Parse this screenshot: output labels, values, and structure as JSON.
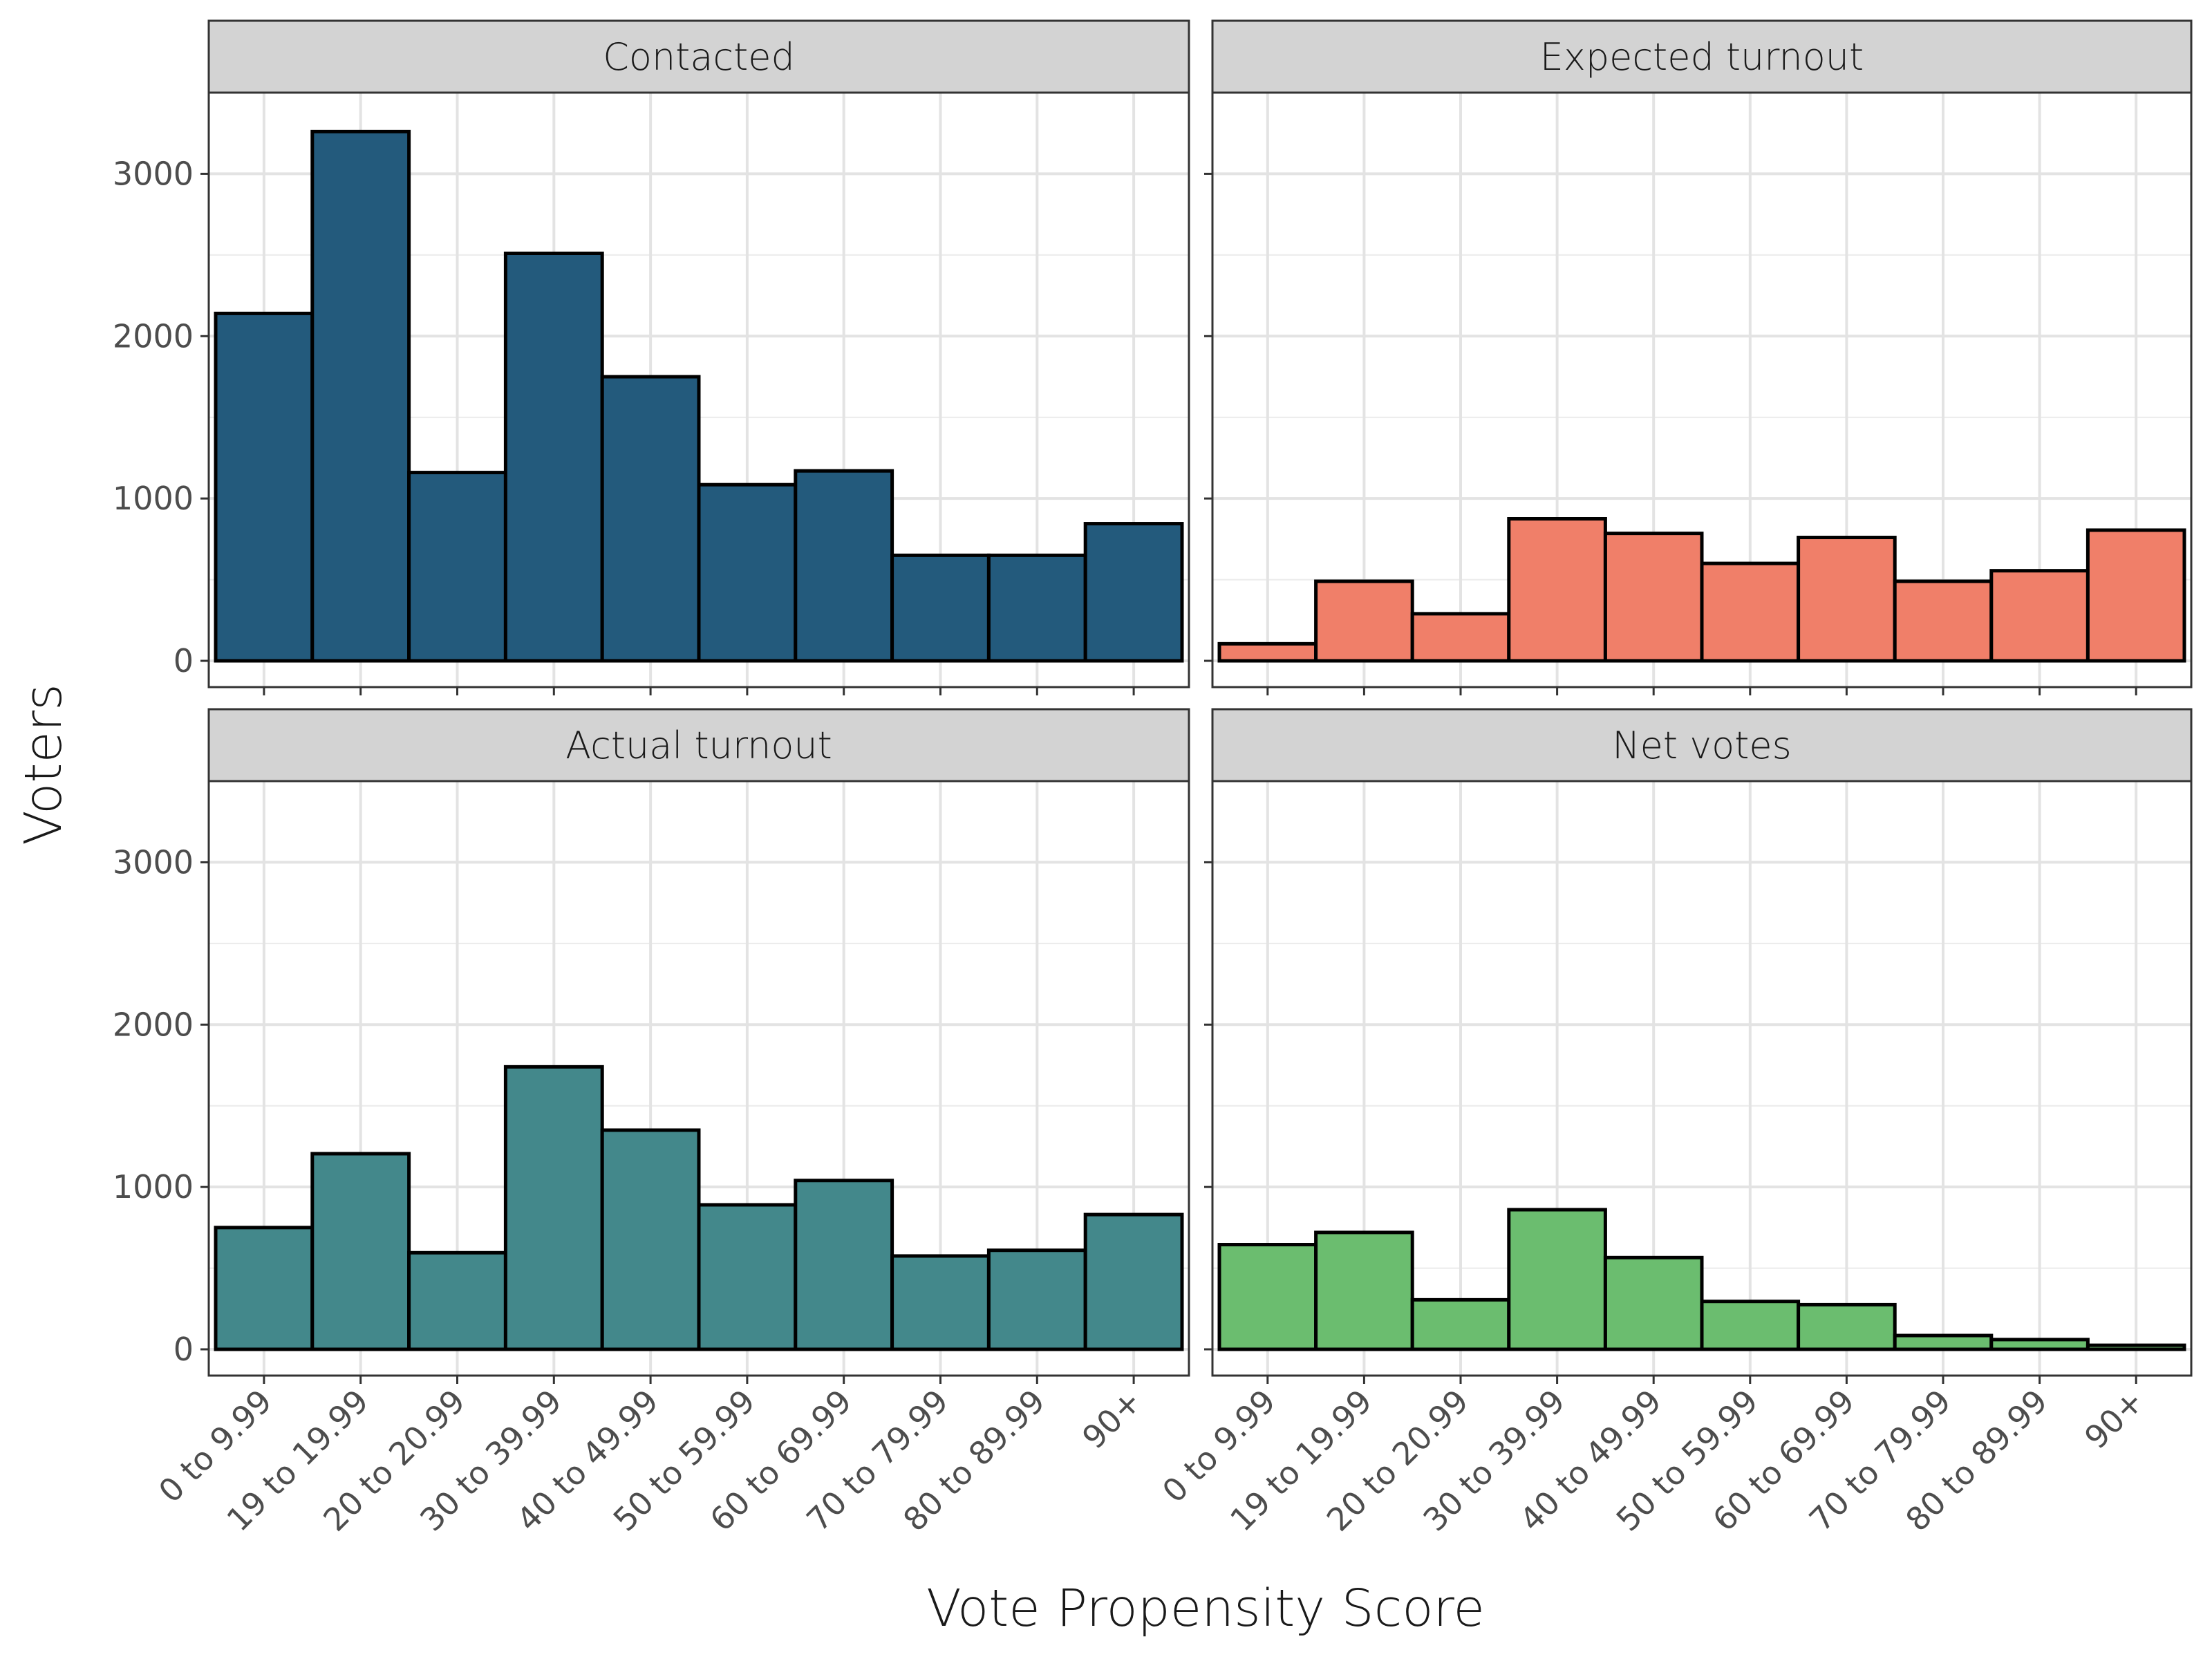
{
  "chart_data": {
    "type": "bar",
    "layout": "facet-grid-2x2",
    "xlabel": "Vote Propensity Score",
    "ylabel": "Voters",
    "ylim": [
      0,
      3500
    ],
    "yticks": [
      0,
      1000,
      2000,
      3000
    ],
    "grid": true,
    "categories": [
      "0 to 9.99",
      "19 to 19.99",
      "20 to 20.99",
      "30 to 39.99",
      "40 to 49.99",
      "50 to 59.99",
      "60 to 69.99",
      "70 to 79.99",
      "80 to 89.99",
      "90+"
    ],
    "panels": [
      {
        "title": "Contacted",
        "color": "#235a7c",
        "values": [
          2140,
          3260,
          1160,
          2510,
          1750,
          1085,
          1170,
          650,
          650,
          845
        ]
      },
      {
        "title": "Expected turnout",
        "color": "#f07f69",
        "values": [
          105,
          490,
          290,
          875,
          785,
          600,
          760,
          490,
          555,
          805
        ]
      },
      {
        "title": "Actual turnout",
        "color": "#43888b",
        "values": [
          750,
          1205,
          595,
          1740,
          1350,
          890,
          1040,
          575,
          610,
          830
        ]
      },
      {
        "title": "Net votes",
        "color": "#6bbd6f",
        "values": [
          645,
          720,
          305,
          860,
          565,
          295,
          275,
          85,
          60,
          25
        ]
      }
    ]
  }
}
